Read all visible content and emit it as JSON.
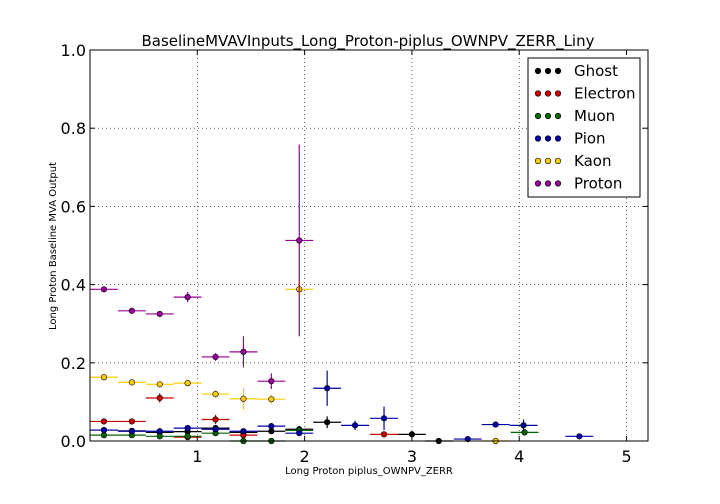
{
  "chart_data": {
    "type": "scatter",
    "title": "BaselineMVAVInputs_Long_Proton-piplus_OWNPV_ZERR_Liny",
    "xlabel": "Long Proton piplus_OWNPV_ZERR",
    "ylabel": "Long Proton Baseline MVA Output",
    "xlim": [
      0,
      5.2
    ],
    "ylim": [
      0,
      1.0
    ],
    "x_ticks": [
      "1",
      "2",
      "3",
      "4",
      "5"
    ],
    "y_ticks": [
      "0.0",
      "0.2",
      "0.4",
      "0.6",
      "0.8",
      "1.0"
    ],
    "grid": true,
    "legend_position": "top-right",
    "series": [
      {
        "name": "Ghost",
        "color": "#000000",
        "points": [
          {
            "x": 0.13,
            "xerr": 0.13,
            "y": 0.028,
            "yerr": 0.003
          },
          {
            "x": 0.39,
            "xerr": 0.13,
            "y": 0.026,
            "yerr": 0.003
          },
          {
            "x": 0.65,
            "xerr": 0.13,
            "y": 0.022,
            "yerr": 0.003
          },
          {
            "x": 0.91,
            "xerr": 0.13,
            "y": 0.024,
            "yerr": 0.004
          },
          {
            "x": 1.17,
            "xerr": 0.13,
            "y": 0.033,
            "yerr": 0.005
          },
          {
            "x": 1.43,
            "xerr": 0.13,
            "y": 0.022,
            "yerr": 0.005
          },
          {
            "x": 1.69,
            "xerr": 0.13,
            "y": 0.025,
            "yerr": 0.006
          },
          {
            "x": 1.95,
            "xerr": 0.13,
            "y": 0.03,
            "yerr": 0.008
          },
          {
            "x": 2.21,
            "xerr": 0.13,
            "y": 0.048,
            "yerr": 0.015
          },
          {
            "x": 3.0,
            "xerr": 0.13,
            "y": 0.017,
            "yerr": 0.008
          },
          {
            "x": 3.25,
            "xerr": 0.13,
            "y": 0.0,
            "yerr": 0.005
          }
        ]
      },
      {
        "name": "Electron",
        "color": "#cc0000",
        "points": [
          {
            "x": 0.13,
            "xerr": 0.13,
            "y": 0.05,
            "yerr": 0.005
          },
          {
            "x": 0.39,
            "xerr": 0.13,
            "y": 0.05,
            "yerr": 0.005
          },
          {
            "x": 0.65,
            "xerr": 0.13,
            "y": 0.11,
            "yerr": 0.012
          },
          {
            "x": 0.91,
            "xerr": 0.13,
            "y": 0.01,
            "yerr": 0.005
          },
          {
            "x": 1.17,
            "xerr": 0.13,
            "y": 0.055,
            "yerr": 0.012
          },
          {
            "x": 1.43,
            "xerr": 0.13,
            "y": 0.015,
            "yerr": 0.008
          },
          {
            "x": 2.74,
            "xerr": 0.13,
            "y": 0.017,
            "yerr": 0.006
          }
        ]
      },
      {
        "name": "Muon",
        "color": "#006600",
        "points": [
          {
            "x": 0.13,
            "xerr": 0.13,
            "y": 0.015,
            "yerr": 0.003
          },
          {
            "x": 0.39,
            "xerr": 0.13,
            "y": 0.015,
            "yerr": 0.003
          },
          {
            "x": 0.65,
            "xerr": 0.13,
            "y": 0.012,
            "yerr": 0.003
          },
          {
            "x": 0.91,
            "xerr": 0.13,
            "y": 0.012,
            "yerr": 0.004
          },
          {
            "x": 1.17,
            "xerr": 0.13,
            "y": 0.02,
            "yerr": 0.005
          },
          {
            "x": 1.43,
            "xerr": 0.13,
            "y": 0.0,
            "yerr": 0.003
          },
          {
            "x": 1.69,
            "xerr": 0.13,
            "y": 0.0,
            "yerr": 0.003
          },
          {
            "x": 1.95,
            "xerr": 0.13,
            "y": 0.027,
            "yerr": 0.008
          },
          {
            "x": 4.05,
            "xerr": 0.13,
            "y": 0.022,
            "yerr": 0.008
          }
        ]
      },
      {
        "name": "Pion",
        "color": "#0000aa",
        "points": [
          {
            "x": 0.13,
            "xerr": 0.13,
            "y": 0.028,
            "yerr": 0.003
          },
          {
            "x": 0.39,
            "xerr": 0.13,
            "y": 0.025,
            "yerr": 0.003
          },
          {
            "x": 0.65,
            "xerr": 0.13,
            "y": 0.025,
            "yerr": 0.003
          },
          {
            "x": 0.91,
            "xerr": 0.13,
            "y": 0.033,
            "yerr": 0.004
          },
          {
            "x": 1.17,
            "xerr": 0.13,
            "y": 0.03,
            "yerr": 0.005
          },
          {
            "x": 1.43,
            "xerr": 0.13,
            "y": 0.025,
            "yerr": 0.005
          },
          {
            "x": 1.69,
            "xerr": 0.13,
            "y": 0.038,
            "yerr": 0.008
          },
          {
            "x": 1.95,
            "xerr": 0.13,
            "y": 0.02,
            "yerr": 0.006
          },
          {
            "x": 2.21,
            "xerr": 0.13,
            "y": 0.135,
            "yerr": 0.045
          },
          {
            "x": 2.47,
            "xerr": 0.13,
            "y": 0.04,
            "yerr": 0.012
          },
          {
            "x": 2.74,
            "xerr": 0.13,
            "y": 0.058,
            "yerr": 0.03
          },
          {
            "x": 3.52,
            "xerr": 0.13,
            "y": 0.005,
            "yerr": 0.003
          },
          {
            "x": 3.78,
            "xerr": 0.13,
            "y": 0.042,
            "yerr": 0.006
          },
          {
            "x": 4.04,
            "xerr": 0.13,
            "y": 0.04,
            "yerr": 0.015
          },
          {
            "x": 4.56,
            "xerr": 0.13,
            "y": 0.012,
            "yerr": 0.004
          }
        ]
      },
      {
        "name": "Kaon",
        "color": "#ffcc00",
        "points": [
          {
            "x": 0.13,
            "xerr": 0.13,
            "y": 0.163,
            "yerr": 0.005
          },
          {
            "x": 0.39,
            "xerr": 0.13,
            "y": 0.15,
            "yerr": 0.004
          },
          {
            "x": 0.65,
            "xerr": 0.13,
            "y": 0.145,
            "yerr": 0.004
          },
          {
            "x": 0.91,
            "xerr": 0.13,
            "y": 0.148,
            "yerr": 0.006
          },
          {
            "x": 1.17,
            "xerr": 0.13,
            "y": 0.12,
            "yerr": 0.01
          },
          {
            "x": 1.43,
            "xerr": 0.13,
            "y": 0.108,
            "yerr": 0.028
          },
          {
            "x": 1.69,
            "xerr": 0.13,
            "y": 0.107,
            "yerr": 0.012
          },
          {
            "x": 1.95,
            "xerr": 0.13,
            "y": 0.388,
            "yerr": 0.12
          },
          {
            "x": 3.78,
            "xerr": 0.13,
            "y": 0.0,
            "yerr": 0.004
          }
        ]
      },
      {
        "name": "Proton",
        "color": "#990099",
        "points": [
          {
            "x": 0.13,
            "xerr": 0.13,
            "y": 0.388,
            "yerr": 0.005
          },
          {
            "x": 0.39,
            "xerr": 0.13,
            "y": 0.333,
            "yerr": 0.005
          },
          {
            "x": 0.65,
            "xerr": 0.13,
            "y": 0.325,
            "yerr": 0.005
          },
          {
            "x": 0.91,
            "xerr": 0.13,
            "y": 0.368,
            "yerr": 0.013
          },
          {
            "x": 1.17,
            "xerr": 0.13,
            "y": 0.215,
            "yerr": 0.01
          },
          {
            "x": 1.43,
            "xerr": 0.13,
            "y": 0.228,
            "yerr": 0.04
          },
          {
            "x": 1.69,
            "xerr": 0.13,
            "y": 0.153,
            "yerr": 0.02
          },
          {
            "x": 1.95,
            "xerr": 0.13,
            "y": 0.513,
            "yerr": 0.245
          }
        ]
      }
    ]
  }
}
